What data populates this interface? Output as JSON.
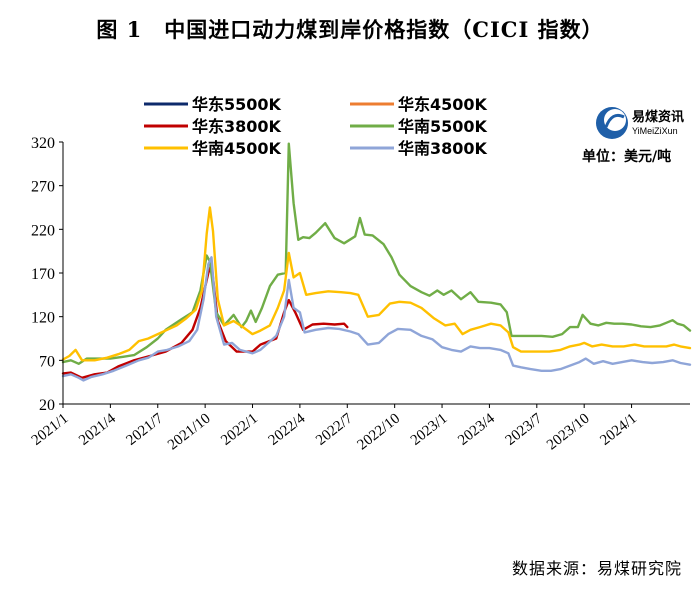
{
  "figure": {
    "title": "图 1　中国进口动力煤到岸价格指数（CICI 指数）",
    "source": "数据来源：易煤研究院",
    "logo_cn": "易煤资讯",
    "logo_en": "YiMeiZiXun",
    "unit": "单位：美元/吨"
  },
  "chart_data": {
    "type": "line",
    "title": "中国进口动力煤到岸价格指数（CICI 指数）",
    "xlabel": "",
    "ylabel": "单位：美元/吨",
    "ylim": [
      20,
      320
    ],
    "yticks": [
      20,
      70,
      120,
      170,
      220,
      270,
      320
    ],
    "x_range": [
      0,
      39.7
    ],
    "xticks": [
      {
        "pos": 0,
        "label": "2021/1"
      },
      {
        "pos": 3,
        "label": "2021/4"
      },
      {
        "pos": 6,
        "label": "2021/7"
      },
      {
        "pos": 9,
        "label": "2021/10"
      },
      {
        "pos": 12,
        "label": "2022/1"
      },
      {
        "pos": 15,
        "label": "2022/4"
      },
      {
        "pos": 18,
        "label": "2022/7"
      },
      {
        "pos": 21,
        "label": "2022/10"
      },
      {
        "pos": 24,
        "label": "2023/1"
      },
      {
        "pos": 27,
        "label": "2023/4"
      },
      {
        "pos": 30,
        "label": "2023/7"
      },
      {
        "pos": 33,
        "label": "2023/10"
      },
      {
        "pos": 36,
        "label": "2024/1"
      }
    ],
    "x_unit": "months since 2021/1",
    "grid": false,
    "legend_position": "top",
    "series": [
      {
        "name": "华东5500K",
        "color": "#0d2a6b",
        "points": []
      },
      {
        "name": "华东4500K",
        "color": "#ed7d31",
        "points": []
      },
      {
        "name": "华东3800K",
        "color": "#c00000",
        "points": [
          [
            0,
            55
          ],
          [
            0.5,
            56
          ],
          [
            1.2,
            50
          ],
          [
            2,
            54
          ],
          [
            2.8,
            56
          ],
          [
            3.5,
            63
          ],
          [
            4.5,
            70
          ],
          [
            5.5,
            75
          ],
          [
            6.5,
            80
          ],
          [
            7.5,
            90
          ],
          [
            8.2,
            105
          ],
          [
            8.7,
            130
          ],
          [
            9.2,
            170
          ],
          [
            9.4,
            180
          ],
          [
            9.8,
            115
          ],
          [
            10.3,
            92
          ],
          [
            11,
            80
          ],
          [
            12,
            80
          ],
          [
            12.5,
            88
          ],
          [
            13.5,
            95
          ],
          [
            14,
            125
          ],
          [
            14.3,
            139
          ],
          [
            14.7,
            125
          ],
          [
            15.2,
            105
          ],
          [
            15.8,
            111
          ],
          [
            16.5,
            112
          ],
          [
            17.2,
            111
          ],
          [
            17.8,
            112
          ],
          [
            18,
            108
          ]
        ]
      },
      {
        "name": "华南5500K",
        "color": "#70ad47",
        "points": [
          [
            0,
            68
          ],
          [
            0.5,
            70
          ],
          [
            1,
            66
          ],
          [
            1.5,
            72
          ],
          [
            2.2,
            72
          ],
          [
            3,
            72
          ],
          [
            3.8,
            74
          ],
          [
            4.5,
            76
          ],
          [
            5.3,
            85
          ],
          [
            6,
            95
          ],
          [
            6.5,
            105
          ],
          [
            7.5,
            117
          ],
          [
            8.2,
            125
          ],
          [
            8.7,
            150
          ],
          [
            9.1,
            190
          ],
          [
            9.3,
            183
          ],
          [
            9.7,
            125
          ],
          [
            10.2,
            110
          ],
          [
            10.8,
            122
          ],
          [
            11.3,
            108
          ],
          [
            11.6,
            115
          ],
          [
            11.9,
            127
          ],
          [
            12.2,
            114
          ],
          [
            12.6,
            130
          ],
          [
            13.1,
            155
          ],
          [
            13.6,
            168
          ],
          [
            14.1,
            170
          ],
          [
            14.3,
            318
          ],
          [
            14.6,
            250
          ],
          [
            14.9,
            208
          ],
          [
            15.2,
            211
          ],
          [
            15.6,
            210
          ],
          [
            16,
            216
          ],
          [
            16.6,
            227
          ],
          [
            17.2,
            210
          ],
          [
            17.8,
            204
          ],
          [
            18.5,
            212
          ],
          [
            18.8,
            233
          ],
          [
            19.1,
            214
          ],
          [
            19.6,
            213
          ],
          [
            20.3,
            203
          ],
          [
            20.8,
            188
          ],
          [
            21.3,
            168
          ],
          [
            22,
            155
          ],
          [
            22.7,
            148
          ],
          [
            23.2,
            144
          ],
          [
            23.7,
            150
          ],
          [
            24.1,
            145
          ],
          [
            24.6,
            150
          ],
          [
            25.2,
            140
          ],
          [
            25.8,
            148
          ],
          [
            26.3,
            137
          ],
          [
            27.1,
            136
          ],
          [
            27.7,
            134
          ],
          [
            28.1,
            125
          ],
          [
            28.4,
            98
          ],
          [
            29,
            98
          ],
          [
            29.8,
            98
          ],
          [
            30.3,
            98
          ],
          [
            31,
            97
          ],
          [
            31.6,
            100
          ],
          [
            32.1,
            108
          ],
          [
            32.6,
            108
          ],
          [
            32.9,
            122
          ],
          [
            33.4,
            112
          ],
          [
            33.9,
            110
          ],
          [
            34.4,
            113
          ],
          [
            34.9,
            112
          ],
          [
            35.4,
            112
          ],
          [
            36,
            111
          ],
          [
            36.6,
            109
          ],
          [
            37.2,
            108
          ],
          [
            37.8,
            110
          ],
          [
            38.2,
            113
          ],
          [
            38.6,
            116
          ],
          [
            38.9,
            112
          ],
          [
            39.3,
            110
          ],
          [
            39.7,
            104
          ]
        ]
      },
      {
        "name": "华南4500K",
        "color": "#ffc000",
        "points": [
          [
            0,
            71
          ],
          [
            0.4,
            75
          ],
          [
            0.8,
            82
          ],
          [
            1.2,
            70
          ],
          [
            2,
            70
          ],
          [
            2.8,
            73
          ],
          [
            3.5,
            77
          ],
          [
            4.2,
            82
          ],
          [
            4.8,
            92
          ],
          [
            5.4,
            95
          ],
          [
            6,
            100
          ],
          [
            6.6,
            105
          ],
          [
            7.2,
            110
          ],
          [
            7.8,
            118
          ],
          [
            8.4,
            128
          ],
          [
            8.8,
            150
          ],
          [
            9.1,
            215
          ],
          [
            9.3,
            245
          ],
          [
            9.5,
            218
          ],
          [
            9.8,
            140
          ],
          [
            10.2,
            110
          ],
          [
            10.8,
            115
          ],
          [
            11.4,
            108
          ],
          [
            12,
            100
          ],
          [
            12.5,
            104
          ],
          [
            13.1,
            110
          ],
          [
            13.6,
            130
          ],
          [
            14,
            150
          ],
          [
            14.3,
            193
          ],
          [
            14.6,
            165
          ],
          [
            15,
            170
          ],
          [
            15.4,
            145
          ],
          [
            16,
            147
          ],
          [
            16.8,
            149
          ],
          [
            17.6,
            148
          ],
          [
            18.2,
            147
          ],
          [
            18.7,
            145
          ],
          [
            19.3,
            120
          ],
          [
            20,
            122
          ],
          [
            20.7,
            135
          ],
          [
            21.3,
            137
          ],
          [
            22,
            136
          ],
          [
            22.7,
            130
          ],
          [
            23.5,
            118
          ],
          [
            24.2,
            110
          ],
          [
            24.8,
            112
          ],
          [
            25.3,
            100
          ],
          [
            25.8,
            105
          ],
          [
            26.4,
            108
          ],
          [
            27.1,
            112
          ],
          [
            27.7,
            110
          ],
          [
            28.2,
            102
          ],
          [
            28.5,
            85
          ],
          [
            29,
            80
          ],
          [
            30,
            80
          ],
          [
            30.8,
            80
          ],
          [
            31.5,
            82
          ],
          [
            32.1,
            86
          ],
          [
            32.7,
            88
          ],
          [
            33,
            90
          ],
          [
            33.5,
            86
          ],
          [
            34.1,
            88
          ],
          [
            34.8,
            86
          ],
          [
            35.5,
            86
          ],
          [
            36.2,
            88
          ],
          [
            36.8,
            86
          ],
          [
            37.5,
            86
          ],
          [
            38.2,
            86
          ],
          [
            38.7,
            88
          ],
          [
            39.1,
            86
          ],
          [
            39.7,
            84
          ]
        ]
      },
      {
        "name": "华南3800K",
        "color": "#8fa5d8",
        "points": [
          [
            0,
            52
          ],
          [
            0.5,
            54
          ],
          [
            1,
            50
          ],
          [
            1.3,
            47
          ],
          [
            1.8,
            51
          ],
          [
            2.5,
            54
          ],
          [
            3.2,
            58
          ],
          [
            4,
            64
          ],
          [
            4.8,
            70
          ],
          [
            5.4,
            73
          ],
          [
            6,
            80
          ],
          [
            6.6,
            82
          ],
          [
            7.3,
            86
          ],
          [
            8,
            92
          ],
          [
            8.5,
            105
          ],
          [
            8.9,
            140
          ],
          [
            9.2,
            180
          ],
          [
            9.4,
            188
          ],
          [
            9.7,
            120
          ],
          [
            10.2,
            88
          ],
          [
            10.7,
            90
          ],
          [
            11.2,
            82
          ],
          [
            12,
            78
          ],
          [
            12.5,
            82
          ],
          [
            13,
            90
          ],
          [
            13.5,
            98
          ],
          [
            14,
            120
          ],
          [
            14.3,
            162
          ],
          [
            14.6,
            130
          ],
          [
            15,
            125
          ],
          [
            15.3,
            102
          ],
          [
            16,
            105
          ],
          [
            16.8,
            107
          ],
          [
            17.5,
            106
          ],
          [
            18.2,
            103
          ],
          [
            18.7,
            100
          ],
          [
            19.3,
            88
          ],
          [
            20,
            90
          ],
          [
            20.6,
            100
          ],
          [
            21.2,
            106
          ],
          [
            22,
            105
          ],
          [
            22.7,
            98
          ],
          [
            23.4,
            94
          ],
          [
            24,
            85
          ],
          [
            24.6,
            82
          ],
          [
            25.2,
            80
          ],
          [
            25.8,
            86
          ],
          [
            26.4,
            84
          ],
          [
            27,
            84
          ],
          [
            27.7,
            82
          ],
          [
            28.2,
            78
          ],
          [
            28.5,
            64
          ],
          [
            29,
            62
          ],
          [
            29.6,
            60
          ],
          [
            30.3,
            58
          ],
          [
            30.9,
            58
          ],
          [
            31.5,
            60
          ],
          [
            32.1,
            64
          ],
          [
            32.7,
            68
          ],
          [
            33.1,
            72
          ],
          [
            33.6,
            66
          ],
          [
            34.2,
            69
          ],
          [
            34.8,
            66
          ],
          [
            35.4,
            68
          ],
          [
            36,
            70
          ],
          [
            36.7,
            68
          ],
          [
            37.3,
            67
          ],
          [
            38,
            68
          ],
          [
            38.6,
            70
          ],
          [
            39.1,
            67
          ],
          [
            39.7,
            65
          ]
        ]
      }
    ]
  }
}
